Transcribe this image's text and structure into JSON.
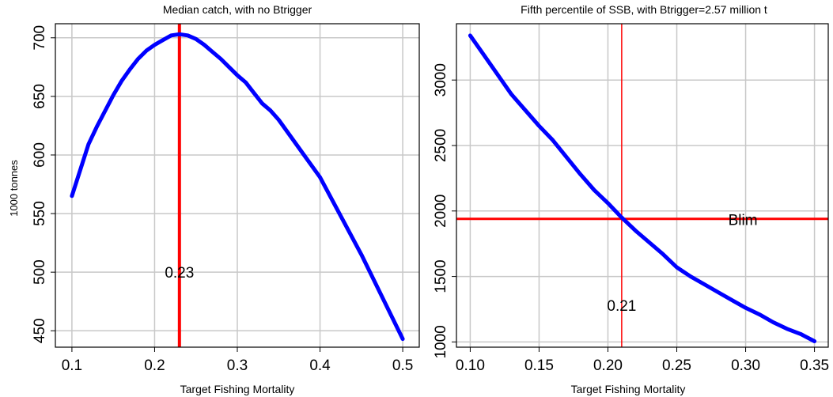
{
  "chart_data": [
    {
      "type": "line",
      "title": "Median catch, with no Btrigger",
      "xlabel": "Target Fishing Mortality",
      "ylabel": "1000 tonnes",
      "xlim": [
        0.08,
        0.52
      ],
      "ylim": [
        436,
        712
      ],
      "xticks": [
        0.1,
        0.2,
        0.3,
        0.4,
        0.5
      ],
      "xtick_labels": [
        "0.1",
        "0.2",
        "0.3",
        "0.4",
        "0.5"
      ],
      "yticks": [
        450,
        500,
        550,
        600,
        650,
        700
      ],
      "ytick_labels": [
        "450",
        "500",
        "550",
        "600",
        "650",
        "700"
      ],
      "grid": true,
      "series": [
        {
          "color": "#0000ff",
          "x": [
            0.1,
            0.12,
            0.13,
            0.15,
            0.16,
            0.17,
            0.18,
            0.19,
            0.2,
            0.21,
            0.22,
            0.23,
            0.24,
            0.25,
            0.26,
            0.27,
            0.28,
            0.29,
            0.3,
            0.31,
            0.32,
            0.33,
            0.34,
            0.35,
            0.4,
            0.45,
            0.5
          ],
          "y": [
            565,
            609,
            624,
            651,
            663,
            673,
            682,
            689,
            694,
            698,
            702,
            703,
            702,
            699,
            694,
            688,
            682,
            675,
            668,
            662,
            653,
            644,
            638,
            630,
            581,
            515,
            443
          ]
        }
      ],
      "vlines": [
        {
          "x": 0.23,
          "color": "#ff0000"
        }
      ],
      "annotations": [
        {
          "text": "0.23",
          "x": 0.23,
          "y": 500
        }
      ]
    },
    {
      "type": "line",
      "title": "Fifth percentile of SSB, with Btrigger=2.57 million t",
      "xlabel": "Target Fishing Mortality",
      "ylabel": "",
      "xlim": [
        0.09,
        0.36
      ],
      "ylim": [
        960,
        3430
      ],
      "xticks": [
        0.1,
        0.15,
        0.2,
        0.25,
        0.3,
        0.35
      ],
      "xtick_labels": [
        "0.10",
        "0.15",
        "0.20",
        "0.25",
        "0.30",
        "0.35"
      ],
      "yticks": [
        1000,
        1500,
        2000,
        2500,
        3000
      ],
      "ytick_labels": [
        "1000",
        "1500",
        "2000",
        "2500",
        "3000"
      ],
      "grid": true,
      "series": [
        {
          "color": "#0000ff",
          "x": [
            0.1,
            0.11,
            0.12,
            0.13,
            0.14,
            0.15,
            0.16,
            0.17,
            0.18,
            0.19,
            0.2,
            0.21,
            0.22,
            0.23,
            0.24,
            0.25,
            0.26,
            0.27,
            0.28,
            0.29,
            0.3,
            0.31,
            0.32,
            0.33,
            0.34,
            0.35
          ],
          "y": [
            3340,
            3190,
            3040,
            2890,
            2770,
            2650,
            2540,
            2410,
            2280,
            2160,
            2060,
            1950,
            1850,
            1760,
            1670,
            1570,
            1500,
            1440,
            1380,
            1320,
            1260,
            1210,
            1150,
            1100,
            1060,
            1005
          ]
        }
      ],
      "vlines": [
        {
          "x": 0.21,
          "color": "#ff0000"
        }
      ],
      "hlines": [
        {
          "y": 1940,
          "color": "#ff0000",
          "label": "Blim"
        }
      ],
      "annotations": [
        {
          "text": "0.21",
          "x": 0.21,
          "y": 1280
        }
      ]
    }
  ]
}
